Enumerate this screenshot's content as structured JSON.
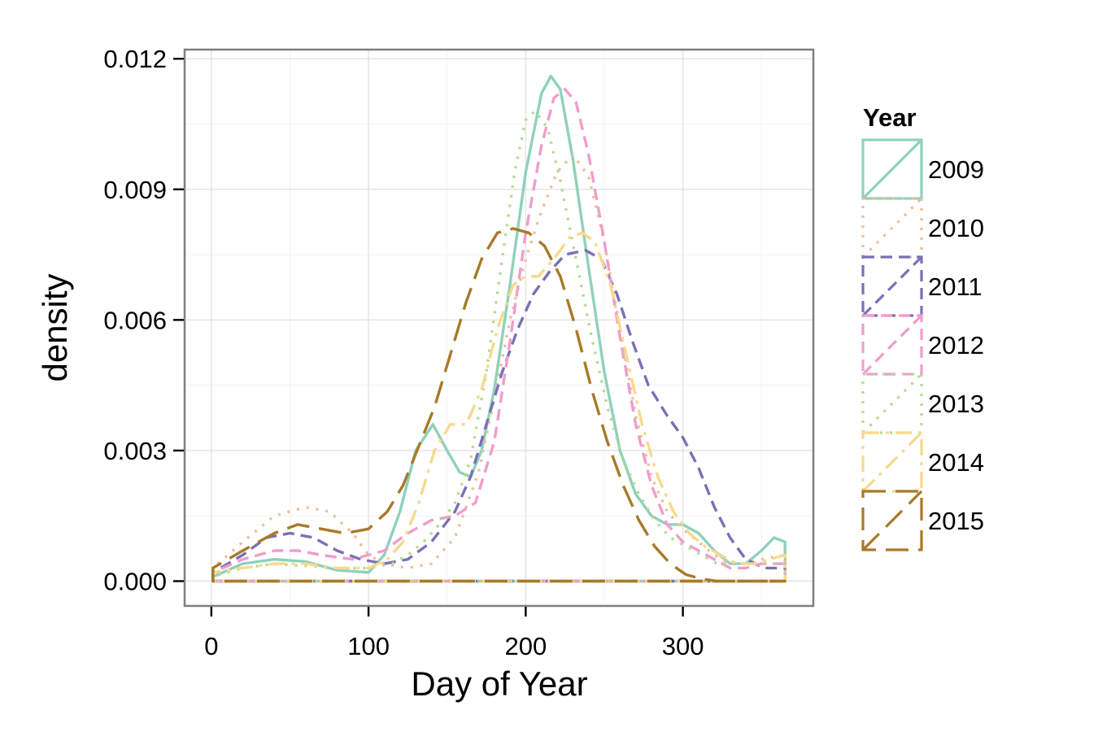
{
  "chart_data": {
    "type": "line",
    "title": "",
    "xlabel": "Day of Year",
    "ylabel": "density",
    "xlim": [
      -17,
      383
    ],
    "ylim": [
      -0.00057,
      0.01221
    ],
    "x_ticks": [
      0,
      100,
      200,
      300
    ],
    "x_tick_labels": [
      "0",
      "100",
      "200",
      "300"
    ],
    "y_ticks": [
      0,
      0.003,
      0.006,
      0.009,
      0.012
    ],
    "y_tick_labels": [
      "0.000",
      "0.003",
      "0.006",
      "0.009",
      "0.012"
    ],
    "grid": true,
    "legend": {
      "title": "Year",
      "position": "right"
    },
    "series": [
      {
        "name": "2009",
        "color": "#8fd1bb",
        "dash": "solid",
        "points": [
          [
            1,
            0.0001
          ],
          [
            20,
            0.0004
          ],
          [
            40,
            0.0005
          ],
          [
            60,
            0.00045
          ],
          [
            80,
            0.00025
          ],
          [
            100,
            0.0002
          ],
          [
            110,
            0.0006
          ],
          [
            120,
            0.0016
          ],
          [
            130,
            0.003
          ],
          [
            141,
            0.0036
          ],
          [
            150,
            0.003
          ],
          [
            158,
            0.0025
          ],
          [
            165,
            0.0024
          ],
          [
            172,
            0.003
          ],
          [
            180,
            0.0044
          ],
          [
            190,
            0.0068
          ],
          [
            200,
            0.0094
          ],
          [
            210,
            0.0112
          ],
          [
            216,
            0.0116
          ],
          [
            222,
            0.0113
          ],
          [
            230,
            0.0097
          ],
          [
            240,
            0.0072
          ],
          [
            250,
            0.0048
          ],
          [
            260,
            0.003
          ],
          [
            270,
            0.002
          ],
          [
            280,
            0.0015
          ],
          [
            290,
            0.0013
          ],
          [
            300,
            0.0013
          ],
          [
            310,
            0.0011
          ],
          [
            320,
            0.0007
          ],
          [
            330,
            0.0004
          ],
          [
            340,
            0.0004
          ],
          [
            350,
            0.0007
          ],
          [
            358,
            0.001
          ],
          [
            365,
            0.0009
          ]
        ]
      },
      {
        "name": "2010",
        "color": "#eebd97",
        "dash": "dotted",
        "points": [
          [
            1,
            0.0003
          ],
          [
            20,
            0.0009
          ],
          [
            40,
            0.0015
          ],
          [
            60,
            0.0017
          ],
          [
            75,
            0.0016
          ],
          [
            90,
            0.0011
          ],
          [
            100,
            0.0006
          ],
          [
            110,
            0.0004
          ],
          [
            125,
            0.0003
          ],
          [
            140,
            0.0004
          ],
          [
            155,
            0.001
          ],
          [
            170,
            0.0025
          ],
          [
            180,
            0.0042
          ],
          [
            190,
            0.006
          ],
          [
            200,
            0.0074
          ],
          [
            210,
            0.0085
          ],
          [
            220,
            0.0094
          ],
          [
            230,
            0.0098
          ],
          [
            240,
            0.0093
          ],
          [
            250,
            0.0078
          ],
          [
            260,
            0.0058
          ],
          [
            270,
            0.0038
          ],
          [
            280,
            0.0024
          ],
          [
            290,
            0.0016
          ],
          [
            300,
            0.0012
          ],
          [
            310,
            0.0009
          ],
          [
            320,
            0.0006
          ],
          [
            330,
            0.0004
          ],
          [
            340,
            0.0004
          ],
          [
            350,
            0.0005
          ],
          [
            365,
            0.0006
          ]
        ]
      },
      {
        "name": "2011",
        "color": "#7b70b6",
        "dash": "dashed",
        "points": [
          [
            1,
            0.0002
          ],
          [
            20,
            0.0006
          ],
          [
            35,
            0.001
          ],
          [
            50,
            0.0011
          ],
          [
            65,
            0.001
          ],
          [
            80,
            0.0007
          ],
          [
            95,
            0.0005
          ],
          [
            110,
            0.0004
          ],
          [
            125,
            0.0005
          ],
          [
            140,
            0.0009
          ],
          [
            155,
            0.0016
          ],
          [
            165,
            0.0024
          ],
          [
            175,
            0.0036
          ],
          [
            185,
            0.0048
          ],
          [
            195,
            0.0058
          ],
          [
            205,
            0.0066
          ],
          [
            215,
            0.0071
          ],
          [
            225,
            0.0075
          ],
          [
            238,
            0.0076
          ],
          [
            248,
            0.0074
          ],
          [
            258,
            0.0066
          ],
          [
            268,
            0.0055
          ],
          [
            278,
            0.0045
          ],
          [
            290,
            0.0038
          ],
          [
            300,
            0.0033
          ],
          [
            310,
            0.0026
          ],
          [
            320,
            0.0017
          ],
          [
            330,
            0.001
          ],
          [
            340,
            0.0005
          ],
          [
            352,
            0.0003
          ],
          [
            365,
            0.0003
          ]
        ]
      },
      {
        "name": "2012",
        "color": "#f09dcc",
        "dash": "dashed",
        "points": [
          [
            1,
            0.0002
          ],
          [
            20,
            0.0005
          ],
          [
            40,
            0.0007
          ],
          [
            55,
            0.0007
          ],
          [
            70,
            0.0006
          ],
          [
            90,
            0.0005
          ],
          [
            110,
            0.0007
          ],
          [
            125,
            0.0011
          ],
          [
            140,
            0.0014
          ],
          [
            155,
            0.0015
          ],
          [
            168,
            0.0018
          ],
          [
            180,
            0.0032
          ],
          [
            190,
            0.0055
          ],
          [
            200,
            0.008
          ],
          [
            210,
            0.01
          ],
          [
            218,
            0.0111
          ],
          [
            225,
            0.0113
          ],
          [
            232,
            0.011
          ],
          [
            240,
            0.0098
          ],
          [
            250,
            0.0078
          ],
          [
            260,
            0.0056
          ],
          [
            270,
            0.0036
          ],
          [
            280,
            0.0022
          ],
          [
            290,
            0.0013
          ],
          [
            300,
            0.0009
          ],
          [
            310,
            0.0007
          ],
          [
            320,
            0.0005
          ],
          [
            330,
            0.0003
          ],
          [
            340,
            0.0003
          ],
          [
            350,
            0.0004
          ],
          [
            365,
            0.0004
          ]
        ]
      },
      {
        "name": "2013",
        "color": "#b8d98f",
        "dash": "dotted",
        "points": [
          [
            1,
            0.0001
          ],
          [
            20,
            0.0003
          ],
          [
            40,
            0.0004
          ],
          [
            60,
            0.00035
          ],
          [
            80,
            0.0003
          ],
          [
            100,
            0.0003
          ],
          [
            115,
            0.0004
          ],
          [
            125,
            0.0006
          ],
          [
            135,
            0.0009
          ],
          [
            145,
            0.0013
          ],
          [
            155,
            0.0018
          ],
          [
            165,
            0.0028
          ],
          [
            175,
            0.0048
          ],
          [
            185,
            0.0074
          ],
          [
            193,
            0.0094
          ],
          [
            200,
            0.0106
          ],
          [
            206,
            0.0108
          ],
          [
            214,
            0.0104
          ],
          [
            222,
            0.0092
          ],
          [
            232,
            0.0074
          ],
          [
            242,
            0.0056
          ],
          [
            252,
            0.004
          ],
          [
            262,
            0.0028
          ],
          [
            272,
            0.002
          ],
          [
            282,
            0.0014
          ],
          [
            292,
            0.001
          ],
          [
            302,
            0.0008
          ],
          [
            312,
            0.0006
          ],
          [
            322,
            0.0004
          ],
          [
            332,
            0.0004
          ],
          [
            345,
            0.0004
          ],
          [
            365,
            0.0004
          ]
        ]
      },
      {
        "name": "2014",
        "color": "#f7d98d",
        "dash": "dashdot",
        "points": [
          [
            1,
            0.0002
          ],
          [
            20,
            0.0003
          ],
          [
            40,
            0.0004
          ],
          [
            60,
            0.0004
          ],
          [
            80,
            0.0003
          ],
          [
            100,
            0.0003
          ],
          [
            112,
            0.0005
          ],
          [
            122,
            0.0009
          ],
          [
            132,
            0.0018
          ],
          [
            142,
            0.003
          ],
          [
            152,
            0.0036
          ],
          [
            162,
            0.0036
          ],
          [
            172,
            0.0044
          ],
          [
            182,
            0.0058
          ],
          [
            192,
            0.0068
          ],
          [
            200,
            0.007
          ],
          [
            208,
            0.007
          ],
          [
            218,
            0.0074
          ],
          [
            228,
            0.0079
          ],
          [
            236,
            0.008
          ],
          [
            244,
            0.0078
          ],
          [
            254,
            0.0068
          ],
          [
            264,
            0.0052
          ],
          [
            274,
            0.0036
          ],
          [
            284,
            0.0024
          ],
          [
            294,
            0.0016
          ],
          [
            304,
            0.0011
          ],
          [
            314,
            0.0008
          ],
          [
            324,
            0.0006
          ],
          [
            334,
            0.0004
          ],
          [
            345,
            0.0004
          ],
          [
            355,
            0.0005
          ],
          [
            365,
            0.0006
          ]
        ]
      },
      {
        "name": "2015",
        "color": "#a87a28",
        "dash": "longdash",
        "points": [
          [
            1,
            0.0003
          ],
          [
            20,
            0.0007
          ],
          [
            40,
            0.0011
          ],
          [
            55,
            0.0013
          ],
          [
            70,
            0.0012
          ],
          [
            85,
            0.0011
          ],
          [
            100,
            0.0012
          ],
          [
            112,
            0.0016
          ],
          [
            122,
            0.0022
          ],
          [
            132,
            0.0031
          ],
          [
            142,
            0.004
          ],
          [
            152,
            0.0052
          ],
          [
            162,
            0.0064
          ],
          [
            172,
            0.0074
          ],
          [
            182,
            0.008
          ],
          [
            192,
            0.0081
          ],
          [
            202,
            0.008
          ],
          [
            212,
            0.0077
          ],
          [
            222,
            0.007
          ],
          [
            232,
            0.0058
          ],
          [
            242,
            0.0044
          ],
          [
            252,
            0.0032
          ],
          [
            262,
            0.0022
          ],
          [
            272,
            0.0014
          ],
          [
            282,
            0.0008
          ],
          [
            292,
            0.0004
          ],
          [
            302,
            0.00015
          ],
          [
            312,
            5e-05
          ],
          [
            322,
            0.0
          ],
          [
            365,
            0.0
          ]
        ]
      }
    ]
  }
}
